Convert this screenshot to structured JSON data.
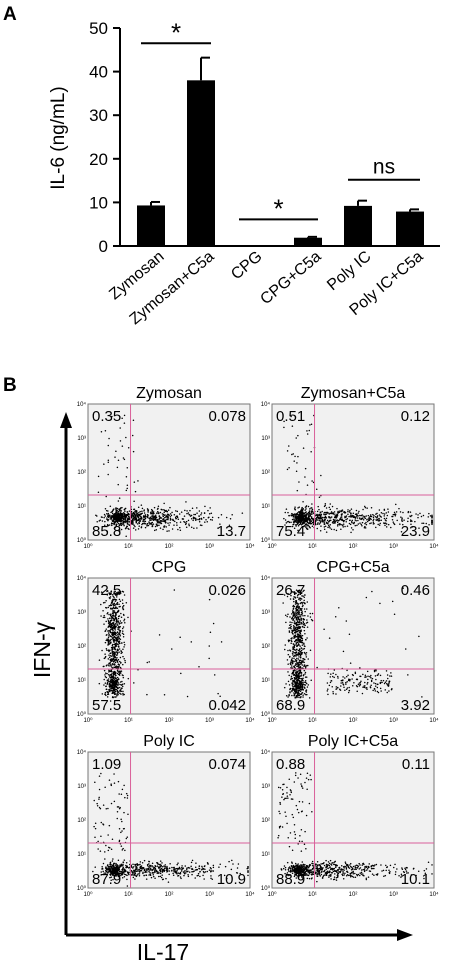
{
  "panel_a": {
    "letter": "A",
    "chart_data": {
      "type": "bar",
      "categories": [
        "Zymosan",
        "Zymosan+C5a",
        "CPG",
        "CPG+C5a",
        "Poly IC",
        "Poly IC+C5a"
      ],
      "values": [
        9.3,
        38.0,
        0.1,
        1.9,
        9.2,
        7.9
      ],
      "errors": [
        0.8,
        5.2,
        0.0,
        0.2,
        1.2,
        0.5
      ],
      "ylabel": "IL-6 (ng/mL)",
      "ylim": [
        0,
        50
      ],
      "yticks": [
        "0",
        "10",
        "20",
        "30",
        "40",
        "50"
      ],
      "bar_color": "#000000",
      "grid": false,
      "annotations": [
        {
          "text": "*",
          "from": 0,
          "to": 1,
          "y": 46.5
        },
        {
          "text": "*",
          "from": 2,
          "to": 3,
          "y": 6.1
        },
        {
          "text": "ns",
          "from": 4,
          "to": 5,
          "y": 15.2
        }
      ]
    }
  },
  "panel_b": {
    "letter": "B",
    "y_axis_label": "IFN-γ",
    "x_axis_label": "IL-17",
    "tick_labels": [
      "10⁰",
      "10¹",
      "10²",
      "10³",
      "10⁴"
    ],
    "gate_color": "#d9609a",
    "plots": [
      {
        "title": "Zymosan",
        "ul": "0.35",
        "ur": "0.078",
        "ll": "85.8",
        "lr": "13.7",
        "pattern": "horizontal",
        "spread": 1.0
      },
      {
        "title": "Zymosan+C5a",
        "ul": "0.51",
        "ur": "0.12",
        "ll": "75.4",
        "lr": "23.9",
        "pattern": "horizontal",
        "spread": 1.3
      },
      {
        "title": "CPG",
        "ul": "42.5",
        "ur": "0.026",
        "ll": "57.5",
        "lr": "0.042",
        "pattern": "vertical",
        "spread": 1.0
      },
      {
        "title": "CPG+C5a",
        "ul": "26.7",
        "ur": "0.46",
        "ll": "68.9",
        "lr": "3.92",
        "pattern": "vertical2",
        "spread": 1.0
      },
      {
        "title": "Poly IC",
        "ul": "1.09",
        "ur": "0.074",
        "ll": "87.9",
        "lr": "10.9",
        "pattern": "sparse",
        "spread": 1.0
      },
      {
        "title": "Poly IC+C5a",
        "ul": "0.88",
        "ur": "0.11",
        "ll": "88.9",
        "lr": "10.1",
        "pattern": "sparse",
        "spread": 1.0
      }
    ]
  }
}
